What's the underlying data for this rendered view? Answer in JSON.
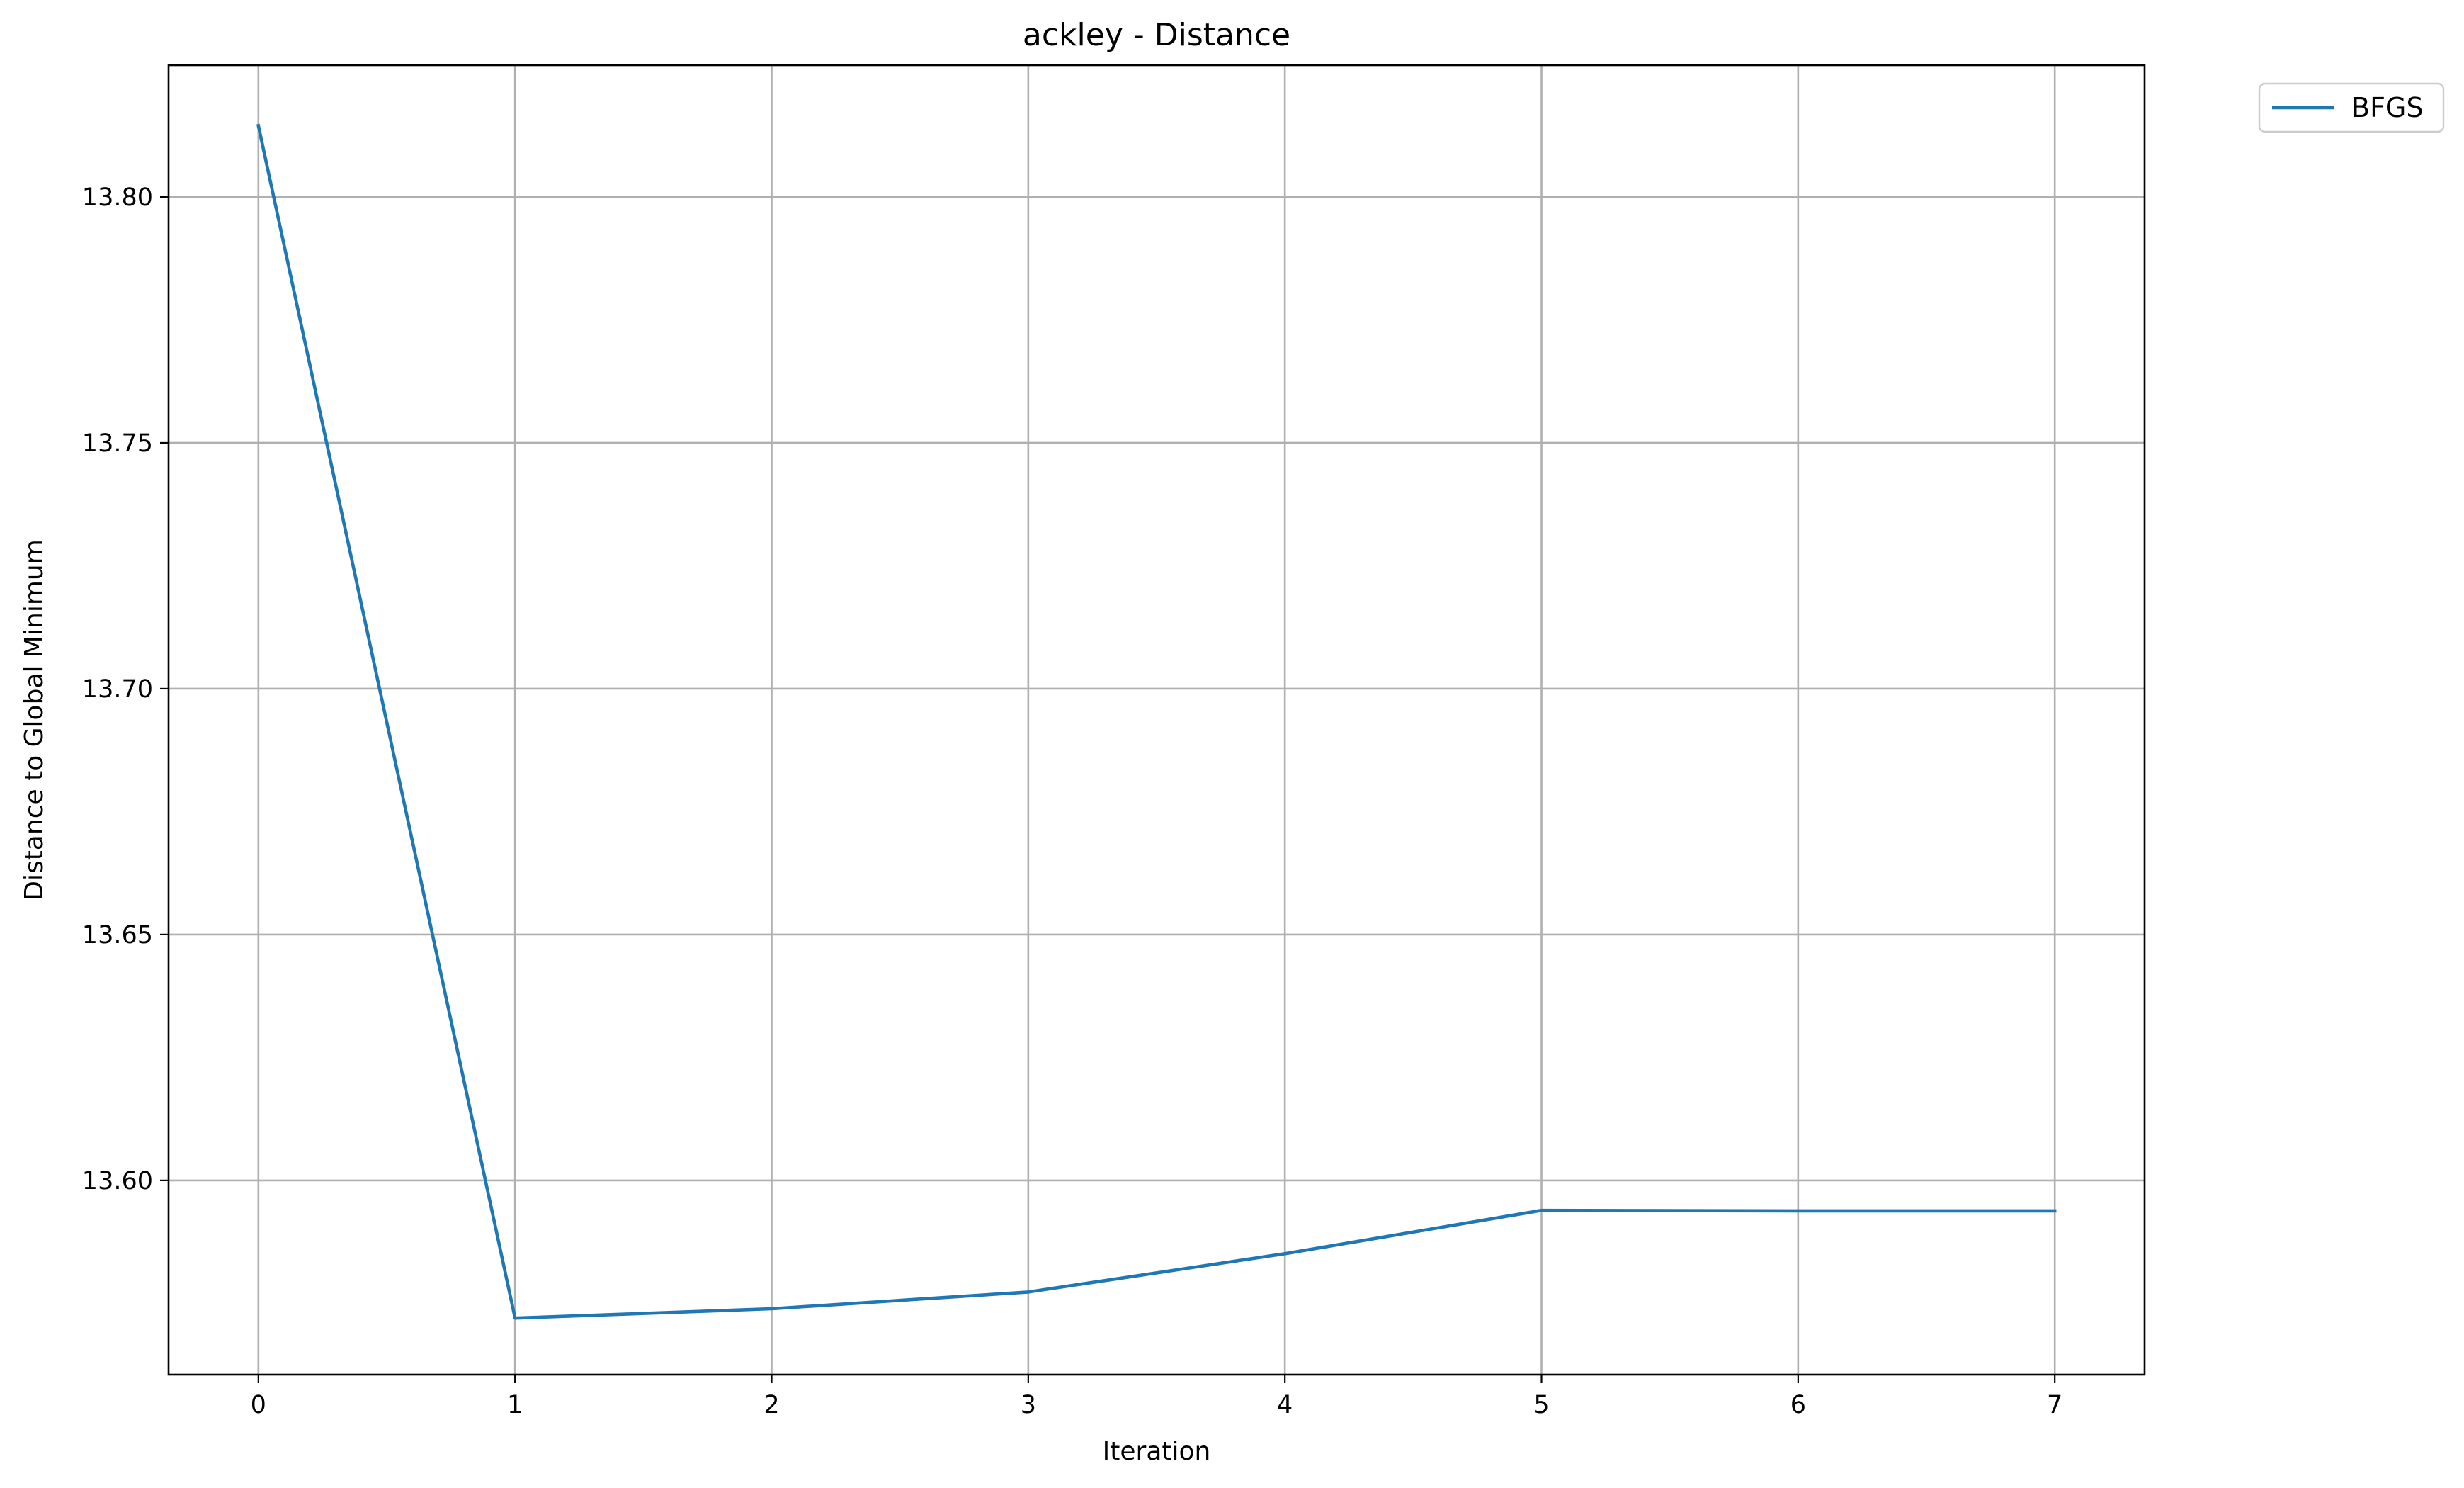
{
  "chart_data": {
    "type": "line",
    "title": "ackley - Distance",
    "xlabel": "Iteration",
    "ylabel": "Distance to Global Minimum",
    "xlim": [
      -0.35,
      7.35
    ],
    "ylim": [
      13.5605,
      13.8268
    ],
    "xticks": [
      0,
      1,
      2,
      3,
      4,
      5,
      6,
      7
    ],
    "xtick_labels": [
      "0",
      "1",
      "2",
      "3",
      "4",
      "5",
      "6",
      "7"
    ],
    "yticks": [
      13.6,
      13.65,
      13.7,
      13.75,
      13.8
    ],
    "ytick_labels": [
      "13.60",
      "13.65",
      "13.70",
      "13.75",
      "13.80"
    ],
    "grid": true,
    "legend_position": "outside-top-right",
    "series": [
      {
        "name": "BFGS",
        "color": "#1f77b4",
        "x": [
          0,
          1,
          2,
          3,
          4,
          5,
          6,
          7
        ],
        "values": [
          13.8145,
          13.572,
          13.5739,
          13.5773,
          13.5851,
          13.5939,
          13.5938,
          13.5938
        ]
      }
    ]
  }
}
